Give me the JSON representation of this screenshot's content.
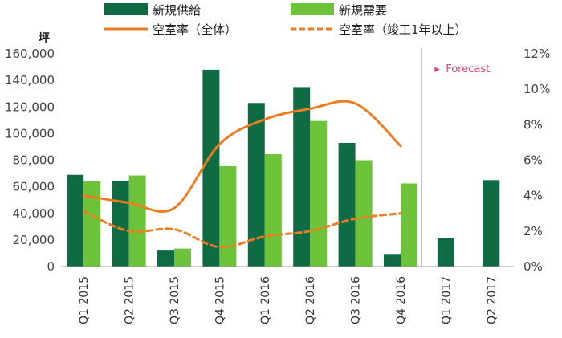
{
  "chart_data": {
    "type": "bar",
    "unit_label": "坪",
    "categories": [
      "Q1 2015",
      "Q2 2015",
      "Q3 2015",
      "Q4 2015",
      "Q1 2016",
      "Q2 2016",
      "Q3 2016",
      "Q4 2016",
      "Q1 2017",
      "Q2 2017"
    ],
    "series": [
      {
        "name": "新規供給",
        "type": "bar",
        "axis": "left",
        "color": "#0f6b44",
        "values": [
          69000,
          64500,
          12000,
          148000,
          123000,
          135000,
          93000,
          9500,
          21500,
          65000
        ]
      },
      {
        "name": "新規需要",
        "type": "bar",
        "axis": "left",
        "color": "#6cc238",
        "values": [
          64000,
          68500,
          13500,
          75500,
          84500,
          109500,
          80000,
          62500,
          null,
          null
        ]
      },
      {
        "name": "空室率（全体）",
        "type": "line",
        "axis": "right",
        "color": "#ee7d22",
        "style": "solid",
        "values": [
          4.0,
          3.6,
          3.3,
          6.9,
          8.3,
          8.9,
          9.2,
          6.8,
          null,
          null
        ]
      },
      {
        "name": "空室率（竣工1年以上）",
        "type": "line",
        "axis": "right",
        "color": "#ee7d22",
        "style": "dashed",
        "values": [
          3.1,
          2.0,
          2.1,
          1.1,
          1.7,
          2.0,
          2.7,
          3.0,
          null,
          null
        ]
      }
    ],
    "y_left": {
      "min": 0,
      "max": 160000,
      "ticks": [
        "0",
        "20,000",
        "40,000",
        "60,000",
        "80,000",
        "100,000",
        "120,000",
        "140,000",
        "160,000"
      ]
    },
    "y_right": {
      "min": 0,
      "max": 12,
      "ticks": [
        "0%",
        "2%",
        "4%",
        "6%",
        "8%",
        "10%",
        "12%"
      ]
    },
    "forecast_label": "Forecast",
    "forecast_marker": "▸",
    "forecast_from_index": 8,
    "grid": false,
    "legend_position": "top"
  }
}
